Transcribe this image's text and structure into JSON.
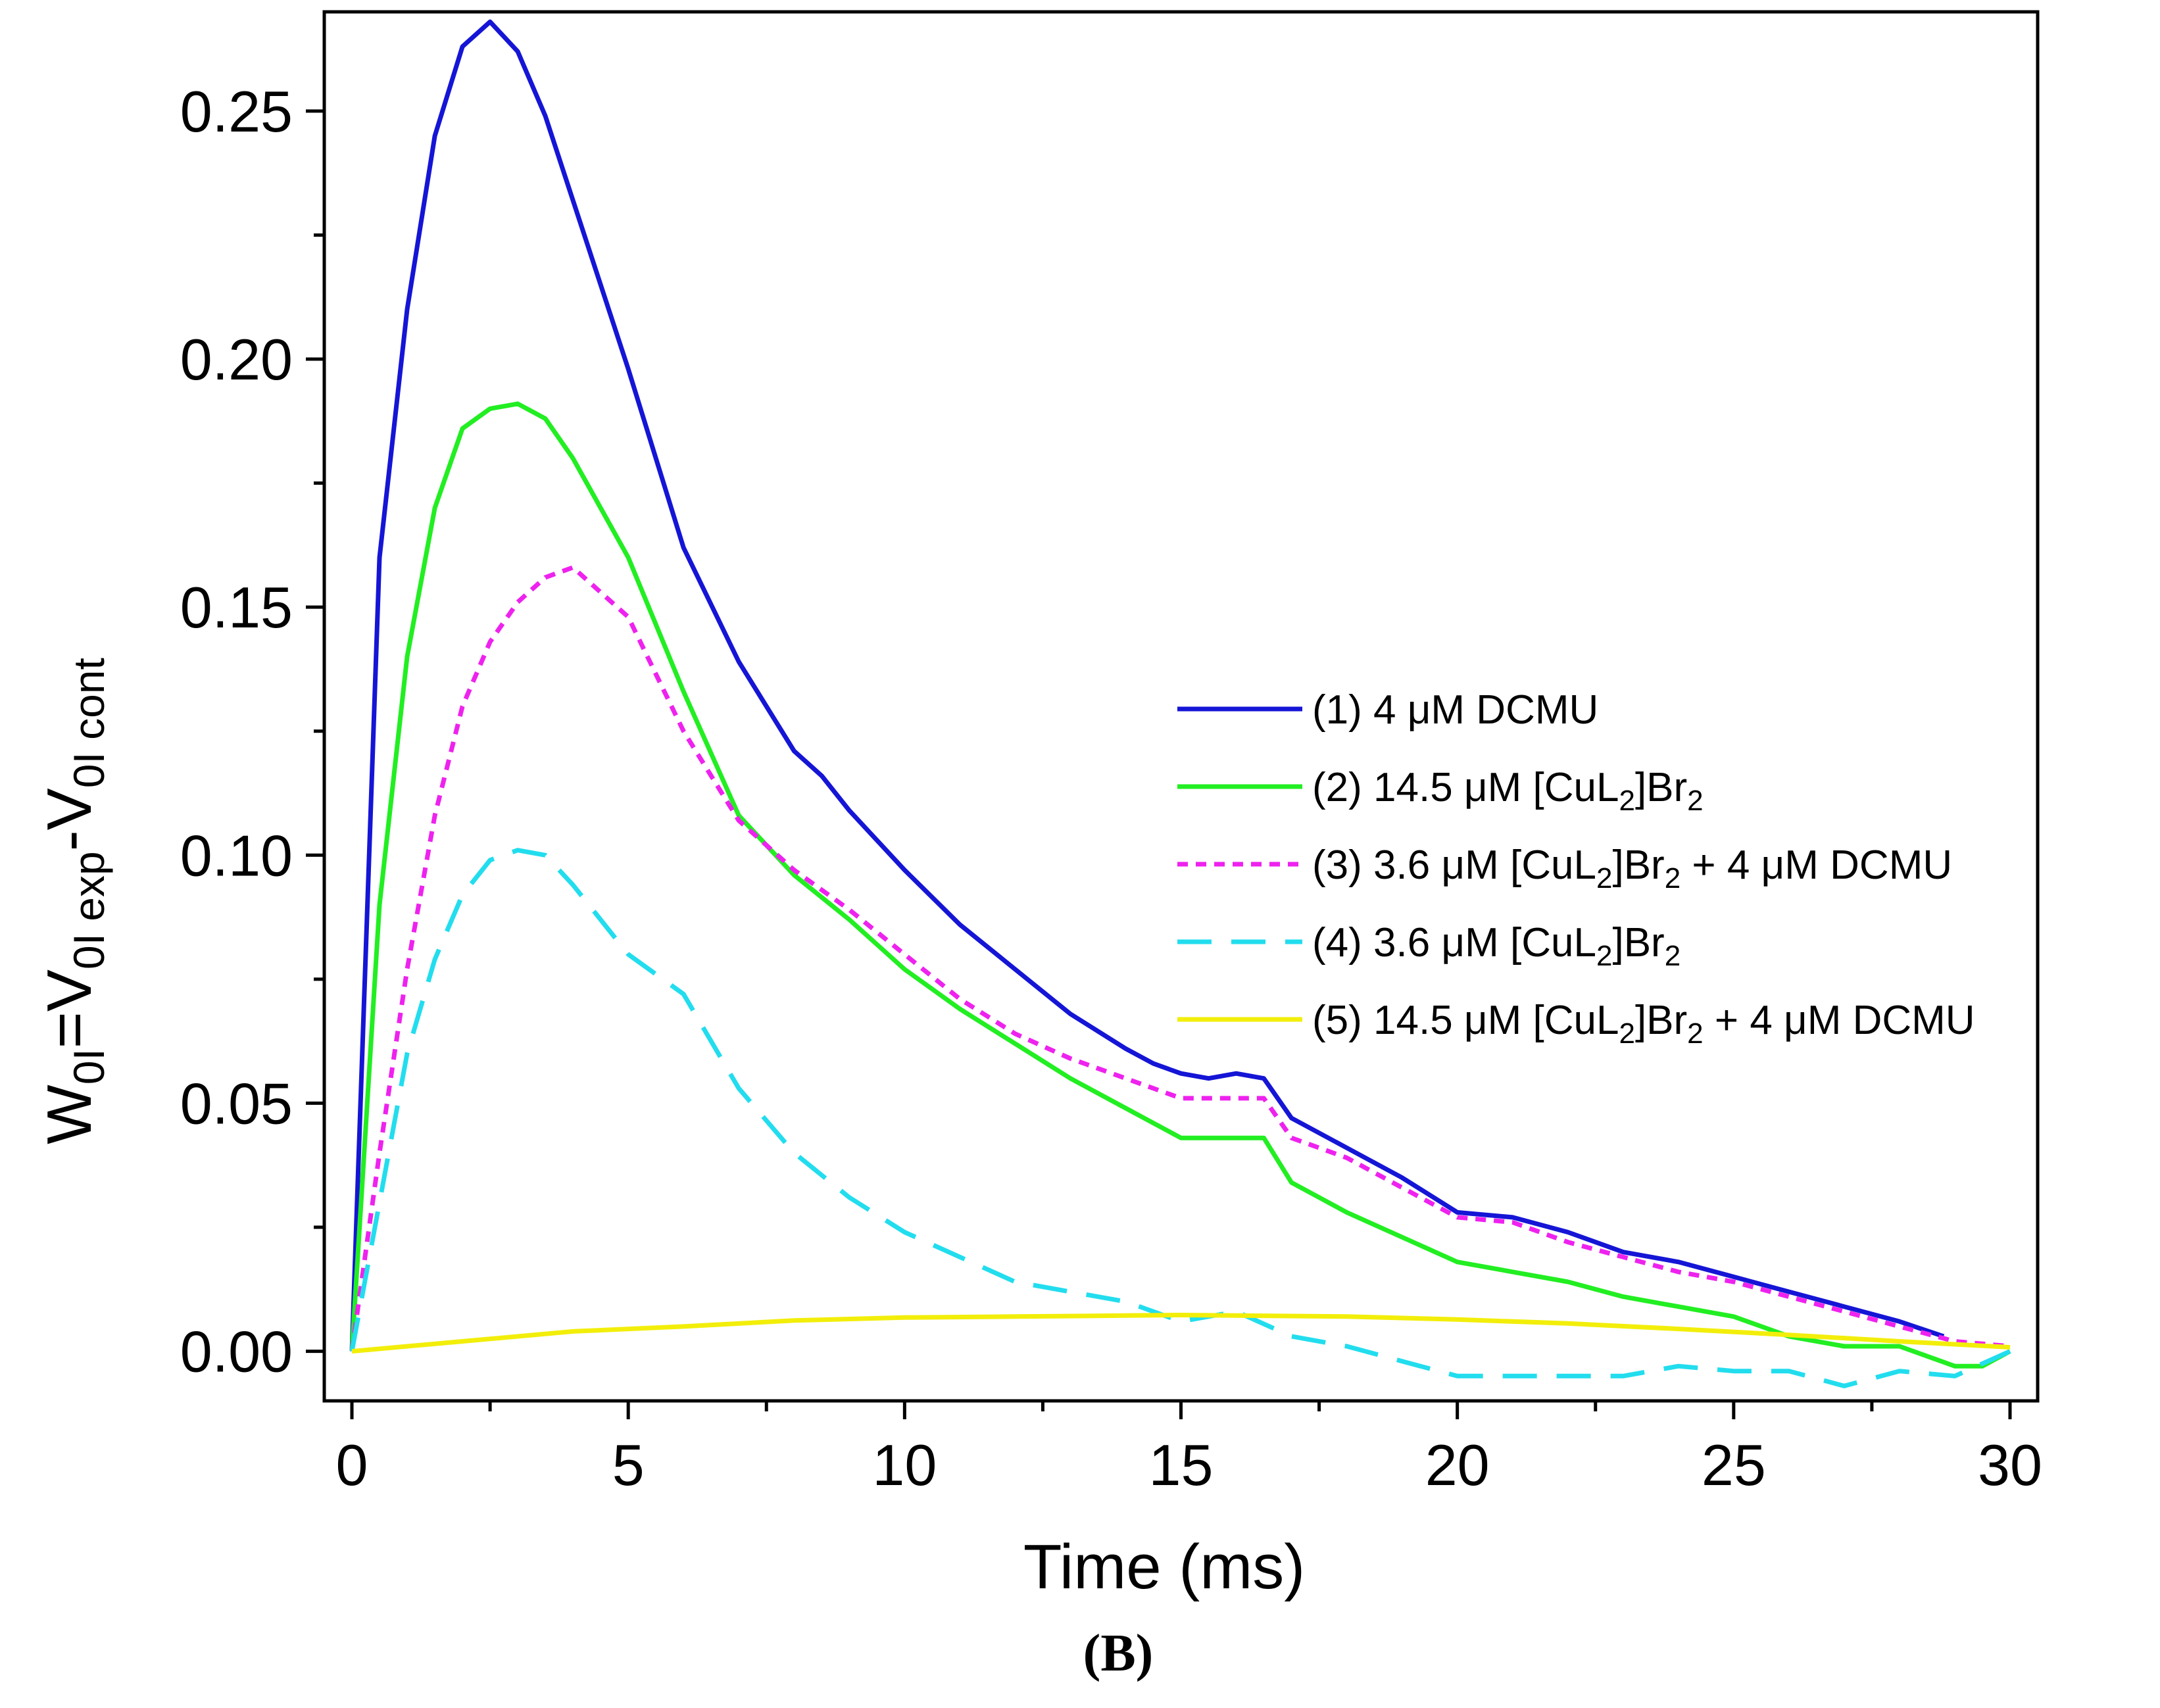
{
  "chart_data": {
    "type": "line",
    "title": "",
    "xlabel": "Time (ms)",
    "ylabel": {
      "main": "W",
      "sub1": "0I",
      "eq": "=V",
      "sub2": "0I exp",
      "minus": "-V",
      "sub3": "0I cont"
    },
    "xlim": [
      -0.5,
      30.5
    ],
    "ylim": [
      -0.01,
      0.27
    ],
    "x_ticks": [
      0,
      5,
      10,
      15,
      20,
      25,
      30
    ],
    "x_tick_labels": [
      "0",
      "5",
      "10",
      "15",
      "20",
      "25",
      "30"
    ],
    "y_ticks": [
      0.0,
      0.05,
      0.1,
      0.15,
      0.2,
      0.25
    ],
    "y_tick_labels": [
      "0.00",
      "0.05",
      "0.10",
      "0.15",
      "0.20",
      "0.25"
    ],
    "panel_label": "(B)",
    "legend_position": "center-right",
    "series": [
      {
        "name": "(1) 4 μM DCMU",
        "legend": {
          "pre": "(1) 4 μM DCMU",
          "sub": "",
          "post": "",
          "sub2": "",
          "post2": ""
        },
        "color": "#1515d6",
        "dash": "solid",
        "x": [
          0,
          0.5,
          1,
          1.5,
          2,
          2.5,
          3,
          3.5,
          4,
          5,
          6,
          7,
          8,
          8.5,
          9,
          10,
          11,
          12,
          13,
          14,
          14.5,
          15,
          15.5,
          16,
          16.5,
          17,
          18,
          19,
          20,
          21,
          22,
          23,
          24,
          25,
          26,
          27,
          28,
          28.8
        ],
        "y": [
          0.0,
          0.16,
          0.21,
          0.245,
          0.263,
          0.268,
          0.262,
          0.249,
          0.232,
          0.198,
          0.162,
          0.139,
          0.121,
          0.116,
          0.109,
          0.097,
          0.086,
          0.077,
          0.068,
          0.061,
          0.058,
          0.056,
          0.055,
          0.056,
          0.055,
          0.047,
          0.041,
          0.035,
          0.028,
          0.027,
          0.024,
          0.02,
          0.018,
          0.015,
          0.012,
          0.009,
          0.006,
          0.003
        ]
      },
      {
        "name": "(2) 14.5 μM [CuL2]Br2",
        "legend": {
          "pre": "(2) 14.5 μM [CuL",
          "sub": "2",
          "post": "]Br",
          "sub2": "2",
          "post2": ""
        },
        "color": "#22ee22",
        "dash": "solid",
        "x": [
          0,
          0.5,
          1,
          1.5,
          2,
          2.5,
          3,
          3.5,
          4,
          5,
          6,
          7,
          8,
          9,
          10,
          11,
          12,
          13,
          14,
          15,
          16,
          16.5,
          17,
          18,
          19,
          20,
          21,
          22,
          23,
          24,
          25,
          26,
          27,
          28,
          28.5,
          29,
          29.5,
          30
        ],
        "y": [
          0.0,
          0.09,
          0.14,
          0.17,
          0.186,
          0.19,
          0.191,
          0.188,
          0.18,
          0.16,
          0.133,
          0.108,
          0.096,
          0.087,
          0.077,
          0.069,
          0.062,
          0.055,
          0.049,
          0.043,
          0.043,
          0.043,
          0.034,
          0.028,
          0.023,
          0.018,
          0.016,
          0.014,
          0.011,
          0.009,
          0.007,
          0.003,
          0.001,
          0.001,
          -0.001,
          -0.003,
          -0.003,
          0.0
        ]
      },
      {
        "name": "(3) 3.6 μM [CuL2]Br2 + 4 μM DCMU",
        "legend": {
          "pre": "(3) 3.6 μM [CuL",
          "sub": "2",
          "post": "]Br",
          "sub2": "2",
          "post2": " + 4 μM DCMU"
        },
        "color": "#ee22ee",
        "dash": "dotted",
        "x": [
          0,
          0.5,
          1,
          1.5,
          2,
          2.5,
          3,
          3.5,
          4,
          5,
          6,
          7,
          8,
          9,
          10,
          11,
          12,
          13,
          14,
          15,
          16,
          16.5,
          17,
          18,
          19,
          20,
          21,
          22,
          23,
          24,
          25,
          26,
          27,
          28,
          29,
          30
        ],
        "y": [
          0.0,
          0.04,
          0.077,
          0.108,
          0.13,
          0.143,
          0.151,
          0.156,
          0.158,
          0.148,
          0.125,
          0.107,
          0.097,
          0.089,
          0.08,
          0.071,
          0.064,
          0.059,
          0.055,
          0.051,
          0.051,
          0.051,
          0.043,
          0.039,
          0.033,
          0.027,
          0.026,
          0.022,
          0.019,
          0.016,
          0.014,
          0.011,
          0.008,
          0.005,
          0.002,
          0.001
        ]
      },
      {
        "name": "(4) 3.6 μM [CuL2]Br2",
        "legend": {
          "pre": "(4) 3.6 μM [CuL",
          "sub": "2",
          "post": "]Br",
          "sub2": "2",
          "post2": ""
        },
        "color": "#22ddee",
        "dash": "dashed",
        "x": [
          0,
          0.5,
          1,
          1.5,
          2,
          2.5,
          3,
          3.5,
          4,
          5,
          6,
          7,
          8,
          9,
          10,
          11,
          12,
          13,
          14,
          15,
          16,
          17,
          18,
          19,
          20,
          21,
          22,
          23,
          24,
          25,
          26,
          27,
          28,
          29,
          30
        ],
        "y": [
          0.0,
          0.03,
          0.06,
          0.079,
          0.092,
          0.099,
          0.101,
          0.1,
          0.094,
          0.08,
          0.072,
          0.053,
          0.04,
          0.031,
          0.024,
          0.019,
          0.014,
          0.012,
          0.01,
          0.006,
          0.008,
          0.003,
          0.001,
          -0.002,
          -0.005,
          -0.005,
          -0.005,
          -0.005,
          -0.003,
          -0.004,
          -0.004,
          -0.007,
          -0.004,
          -0.005,
          0.0
        ]
      },
      {
        "name": "(5) 14.5 μM [CuL2]Br2 + 4 μM DCMU",
        "legend": {
          "pre": "(5) 14.5 μM [CuL",
          "sub": "2",
          "post": "]Br",
          "sub2": "2",
          "post2": " + 4 μM DCMU"
        },
        "color": "#f2ee0a",
        "dash": "solid",
        "x": [
          0,
          2,
          4,
          6,
          8,
          10,
          12,
          14,
          15,
          16,
          18,
          20,
          22,
          24,
          26,
          28,
          30
        ],
        "y": [
          0.0,
          0.002,
          0.004,
          0.005,
          0.0062,
          0.0068,
          0.007,
          0.0072,
          0.0073,
          0.0072,
          0.007,
          0.0064,
          0.0056,
          0.0045,
          0.0033,
          0.002,
          0.0008
        ]
      }
    ]
  }
}
